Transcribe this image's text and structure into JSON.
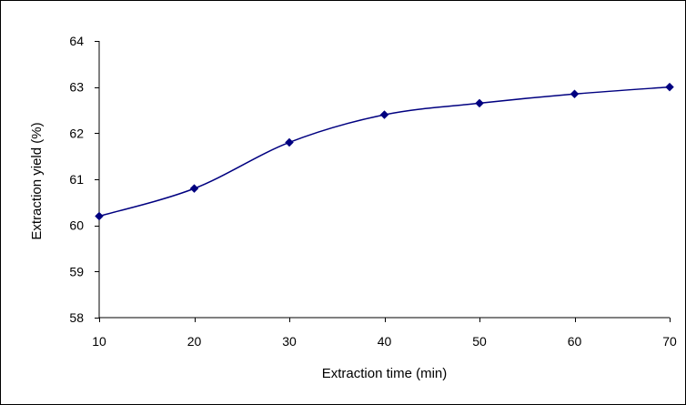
{
  "chart_data": {
    "type": "line",
    "title": "",
    "xlabel": "Extraction time (min)",
    "ylabel": "Extraction yield (%)",
    "x": [
      10,
      20,
      30,
      40,
      50,
      60,
      70
    ],
    "series": [
      {
        "values": [
          60.2,
          60.8,
          61.8,
          62.4,
          62.65,
          62.85,
          63.0
        ],
        "color": "#000080",
        "marker": "diamond",
        "smoothed": true
      }
    ],
    "xlim": [
      10,
      70
    ],
    "ylim": [
      58,
      64
    ],
    "x_ticks": [
      10,
      20,
      30,
      40,
      50,
      60,
      70
    ],
    "y_ticks": [
      58,
      59,
      60,
      61,
      62,
      63,
      64
    ],
    "x_tick_labels": [
      "10",
      "20",
      "30",
      "40",
      "50",
      "60",
      "70"
    ],
    "y_tick_labels": [
      "58",
      "59",
      "60",
      "61",
      "62",
      "63",
      "64"
    ],
    "grid": false,
    "legend": false,
    "axis_color": "#000000"
  }
}
